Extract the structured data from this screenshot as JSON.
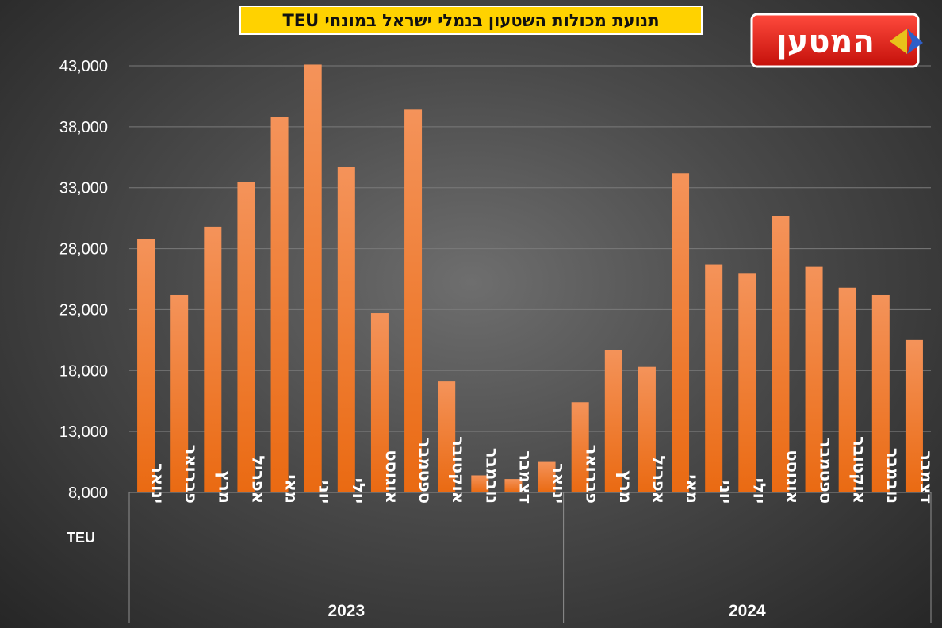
{
  "title": "תנועת מכולות השטעון בנמלי ישראל במונחי TEU",
  "logo_text": "המטען",
  "chart_data": {
    "type": "bar",
    "title": "תנועת מכולות השטעון בנמלי ישראל במונחי TEU",
    "unit_label": "TEU",
    "ylim": [
      8000,
      43000
    ],
    "yticks": [
      8000,
      13000,
      18000,
      23000,
      28000,
      33000,
      38000,
      43000
    ],
    "ytick_labels": [
      "8,000",
      "13,000",
      "18,000",
      "23,000",
      "28,000",
      "33,000",
      "38,000",
      "43,000"
    ],
    "grid": true,
    "bar_color": "#f07e2e",
    "groups": [
      {
        "year": "2023",
        "categories": [
          "ינואר",
          "פברואר",
          "מרץ",
          "אפריל",
          "מאי",
          "יוני",
          "יולי",
          "אוגוסט",
          "ספטמבר",
          "אוקטובר",
          "נובמבר",
          "דצמבר",
          "ינואר"
        ],
        "values": [
          28800,
          24200,
          29800,
          33500,
          38800,
          43100,
          34700,
          22700,
          39400,
          17100,
          9400,
          9100,
          10500
        ]
      },
      {
        "year": "2024",
        "categories": [
          "פברואר",
          "מרץ",
          "אפריל",
          "מאי",
          "יוני",
          "יולי",
          "אוגוסט",
          "ספטמבר",
          "אוקטובר",
          "נובמבר",
          "דצמבר"
        ],
        "values": [
          15400,
          19700,
          18300,
          34200,
          26700,
          26000,
          30700,
          26500,
          24800,
          24200,
          20500
        ]
      }
    ]
  }
}
